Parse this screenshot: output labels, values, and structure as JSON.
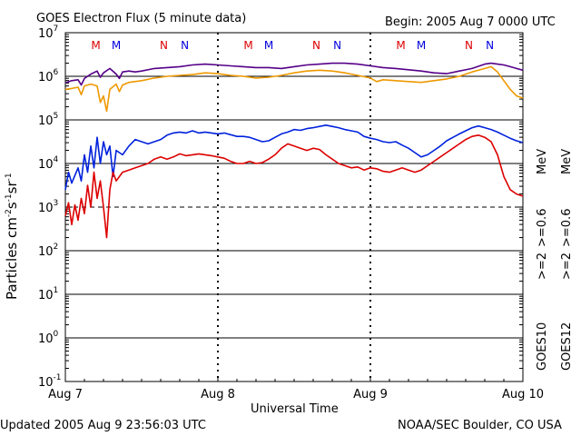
{
  "chart_data": {
    "type": "line",
    "title": "GOES Electron Flux (5 minute data)",
    "begin_label": "Begin: 2005 Aug 7 0000 UTC",
    "xlabel": "Universal Time",
    "ylabel": "Particles cm⁻²s⁻¹sr⁻¹",
    "ylabel_parts": {
      "base": "Particles cm",
      "e1": "-2",
      "s": "s",
      "e2": "-1",
      "sr": "sr",
      "e3": "-1"
    },
    "footer_left": "Updated 2005 Aug  9 23:56:03 UTC",
    "footer_right": "NOAA/SEC Boulder, CO USA",
    "y_scale": "log",
    "ylim": [
      -1,
      7
    ],
    "y_ticks": [
      {
        "base": "10",
        "exp": "7"
      },
      {
        "base": "10",
        "exp": "6"
      },
      {
        "base": "10",
        "exp": "5"
      },
      {
        "base": "10",
        "exp": "4"
      },
      {
        "base": "10",
        "exp": "3"
      },
      {
        "base": "10",
        "exp": "2"
      },
      {
        "base": "10",
        "exp": "1"
      },
      {
        "base": "10",
        "exp": "0"
      },
      {
        "base": "10",
        "exp": "-1"
      }
    ],
    "x_range_hours": [
      0,
      72
    ],
    "x_ticks": [
      {
        "label": "Aug 7",
        "hour": 0
      },
      {
        "label": "Aug 8",
        "hour": 24
      },
      {
        "label": "Aug 9",
        "hour": 48
      },
      {
        "label": "Aug 10",
        "hour": 72
      }
    ],
    "threshold_lines_log": [
      6,
      5,
      4,
      2,
      1,
      0
    ],
    "dashed_threshold_log": 3,
    "markers": [
      {
        "text": "M",
        "hour": 4.8,
        "color": "#dd0000"
      },
      {
        "text": "M",
        "hour": 8.0,
        "color": "#0000dd"
      },
      {
        "text": "N",
        "hour": 15.5,
        "color": "#dd0000"
      },
      {
        "text": "N",
        "hour": 18.8,
        "color": "#0000dd"
      },
      {
        "text": "M",
        "hour": 28.8,
        "color": "#dd0000"
      },
      {
        "text": "M",
        "hour": 32.0,
        "color": "#0000dd"
      },
      {
        "text": "N",
        "hour": 39.5,
        "color": "#dd0000"
      },
      {
        "text": "N",
        "hour": 42.8,
        "color": "#0000dd"
      },
      {
        "text": "M",
        "hour": 52.8,
        "color": "#dd0000"
      },
      {
        "text": "M",
        "hour": 56.0,
        "color": "#0000dd"
      },
      {
        "text": "N",
        "hour": 63.5,
        "color": "#dd0000"
      },
      {
        "text": "N",
        "hour": 66.8,
        "color": "#0000dd"
      }
    ],
    "legend": {
      "goes10_label": "GOES10",
      "goes12_label": "GOES12",
      "goes10_e2": ">=2",
      "goes10_e06": ">=0.6",
      "goes12_e2": ">=2",
      "goes12_e06": ">=0.6",
      "unit": "MeV"
    },
    "series": [
      {
        "name": ">=0.6 MeV GOES10",
        "color": "#550088",
        "points": [
          [
            0,
            5.85
          ],
          [
            1,
            5.9
          ],
          [
            2,
            5.92
          ],
          [
            2.5,
            5.8
          ],
          [
            3,
            5.95
          ],
          [
            4,
            6.05
          ],
          [
            5,
            6.12
          ],
          [
            5.5,
            5.98
          ],
          [
            6,
            6.08
          ],
          [
            7,
            6.18
          ],
          [
            8,
            6.05
          ],
          [
            8.5,
            5.95
          ],
          [
            9,
            6.1
          ],
          [
            10,
            6.12
          ],
          [
            11,
            6.1
          ],
          [
            12,
            6.12
          ],
          [
            14,
            6.18
          ],
          [
            16,
            6.2
          ],
          [
            18,
            6.22
          ],
          [
            20,
            6.26
          ],
          [
            22,
            6.28
          ],
          [
            24,
            6.26
          ],
          [
            26,
            6.24
          ],
          [
            28,
            6.22
          ],
          [
            30,
            6.2
          ],
          [
            32,
            6.2
          ],
          [
            34,
            6.18
          ],
          [
            36,
            6.22
          ],
          [
            38,
            6.26
          ],
          [
            40,
            6.28
          ],
          [
            42,
            6.3
          ],
          [
            44,
            6.3
          ],
          [
            46,
            6.28
          ],
          [
            48,
            6.24
          ],
          [
            50,
            6.2
          ],
          [
            52,
            6.18
          ],
          [
            54,
            6.15
          ],
          [
            56,
            6.12
          ],
          [
            58,
            6.08
          ],
          [
            60,
            6.06
          ],
          [
            62,
            6.12
          ],
          [
            64,
            6.18
          ],
          [
            66,
            6.28
          ],
          [
            67,
            6.3
          ],
          [
            68,
            6.28
          ],
          [
            69,
            6.26
          ],
          [
            70,
            6.22
          ],
          [
            71,
            6.18
          ],
          [
            72,
            6.14
          ]
        ]
      },
      {
        "name": ">=0.6 MeV GOES12",
        "color": "#ee9900",
        "points": [
          [
            0,
            5.7
          ],
          [
            1,
            5.72
          ],
          [
            2,
            5.75
          ],
          [
            2.5,
            5.58
          ],
          [
            3,
            5.78
          ],
          [
            4,
            5.82
          ],
          [
            5,
            5.78
          ],
          [
            5.5,
            5.4
          ],
          [
            6,
            5.55
          ],
          [
            6.5,
            5.2
          ],
          [
            7,
            5.7
          ],
          [
            8,
            5.82
          ],
          [
            8.5,
            5.65
          ],
          [
            9,
            5.8
          ],
          [
            10,
            5.86
          ],
          [
            12,
            5.9
          ],
          [
            14,
            5.96
          ],
          [
            16,
            6.0
          ],
          [
            18,
            6.02
          ],
          [
            20,
            6.04
          ],
          [
            22,
            6.08
          ],
          [
            24,
            6.06
          ],
          [
            26,
            6.02
          ],
          [
            28,
            6.0
          ],
          [
            30,
            5.96
          ],
          [
            32,
            5.98
          ],
          [
            34,
            6.02
          ],
          [
            36,
            6.08
          ],
          [
            38,
            6.12
          ],
          [
            40,
            6.14
          ],
          [
            42,
            6.12
          ],
          [
            44,
            6.08
          ],
          [
            46,
            6.02
          ],
          [
            48,
            5.96
          ],
          [
            49,
            5.88
          ],
          [
            50,
            5.92
          ],
          [
            52,
            5.9
          ],
          [
            54,
            5.88
          ],
          [
            56,
            5.86
          ],
          [
            58,
            5.9
          ],
          [
            60,
            5.94
          ],
          [
            62,
            6.0
          ],
          [
            64,
            6.1
          ],
          [
            66,
            6.18
          ],
          [
            67,
            6.22
          ],
          [
            68,
            6.1
          ],
          [
            69,
            5.9
          ],
          [
            70,
            5.7
          ],
          [
            71,
            5.55
          ],
          [
            72,
            5.5
          ]
        ]
      },
      {
        "name": ">=2 MeV GOES10",
        "color": "#0022dd",
        "points": [
          [
            0,
            3.4
          ],
          [
            0.5,
            3.8
          ],
          [
            1,
            3.55
          ],
          [
            2,
            3.9
          ],
          [
            2.5,
            3.6
          ],
          [
            3,
            4.2
          ],
          [
            3.5,
            3.8
          ],
          [
            4,
            4.4
          ],
          [
            4.5,
            3.9
          ],
          [
            5,
            4.6
          ],
          [
            5.5,
            4.0
          ],
          [
            6,
            4.5
          ],
          [
            6.5,
            4.2
          ],
          [
            7,
            4.4
          ],
          [
            7.5,
            3.7
          ],
          [
            8,
            4.3
          ],
          [
            9,
            4.2
          ],
          [
            10,
            4.4
          ],
          [
            11,
            4.55
          ],
          [
            12,
            4.5
          ],
          [
            13,
            4.45
          ],
          [
            14,
            4.5
          ],
          [
            15,
            4.55
          ],
          [
            16,
            4.65
          ],
          [
            17,
            4.7
          ],
          [
            18,
            4.72
          ],
          [
            19,
            4.7
          ],
          [
            20,
            4.75
          ],
          [
            21,
            4.7
          ],
          [
            22,
            4.72
          ],
          [
            23,
            4.7
          ],
          [
            24,
            4.68
          ],
          [
            25,
            4.7
          ],
          [
            26,
            4.66
          ],
          [
            27,
            4.62
          ],
          [
            28,
            4.62
          ],
          [
            29,
            4.6
          ],
          [
            30,
            4.55
          ],
          [
            31,
            4.5
          ],
          [
            32,
            4.52
          ],
          [
            33,
            4.6
          ],
          [
            34,
            4.68
          ],
          [
            35,
            4.72
          ],
          [
            36,
            4.78
          ],
          [
            37,
            4.76
          ],
          [
            38,
            4.8
          ],
          [
            39,
            4.82
          ],
          [
            40,
            4.85
          ],
          [
            41,
            4.88
          ],
          [
            42,
            4.85
          ],
          [
            43,
            4.82
          ],
          [
            44,
            4.78
          ],
          [
            45,
            4.75
          ],
          [
            46,
            4.72
          ],
          [
            47,
            4.62
          ],
          [
            48,
            4.58
          ],
          [
            49,
            4.55
          ],
          [
            50,
            4.5
          ],
          [
            51,
            4.48
          ],
          [
            52,
            4.5
          ],
          [
            53,
            4.42
          ],
          [
            54,
            4.35
          ],
          [
            55,
            4.25
          ],
          [
            56,
            4.15
          ],
          [
            57,
            4.2
          ],
          [
            58,
            4.3
          ],
          [
            59,
            4.4
          ],
          [
            60,
            4.52
          ],
          [
            61,
            4.6
          ],
          [
            62,
            4.68
          ],
          [
            63,
            4.75
          ],
          [
            64,
            4.82
          ],
          [
            65,
            4.86
          ],
          [
            66,
            4.82
          ],
          [
            67,
            4.78
          ],
          [
            68,
            4.72
          ],
          [
            69,
            4.65
          ],
          [
            70,
            4.58
          ],
          [
            71,
            4.52
          ],
          [
            72,
            4.48
          ]
        ]
      },
      {
        "name": ">=2 MeV GOES12",
        "color": "#dd0000",
        "points": [
          [
            0,
            2.8
          ],
          [
            0.5,
            3.1
          ],
          [
            1,
            2.6
          ],
          [
            1.5,
            3.05
          ],
          [
            2,
            2.7
          ],
          [
            2.5,
            3.2
          ],
          [
            3,
            2.85
          ],
          [
            3.5,
            3.5
          ],
          [
            4,
            3.0
          ],
          [
            4.5,
            3.8
          ],
          [
            5,
            3.2
          ],
          [
            5.5,
            3.6
          ],
          [
            6,
            3.0
          ],
          [
            6.5,
            2.3
          ],
          [
            7,
            3.4
          ],
          [
            7.5,
            3.8
          ],
          [
            8,
            3.6
          ],
          [
            9,
            3.8
          ],
          [
            10,
            3.85
          ],
          [
            11,
            3.9
          ],
          [
            12,
            3.95
          ],
          [
            13,
            4.0
          ],
          [
            14,
            4.1
          ],
          [
            15,
            4.15
          ],
          [
            16,
            4.1
          ],
          [
            17,
            4.15
          ],
          [
            18,
            4.22
          ],
          [
            19,
            4.18
          ],
          [
            20,
            4.2
          ],
          [
            21,
            4.22
          ],
          [
            22,
            4.2
          ],
          [
            23,
            4.18
          ],
          [
            24,
            4.15
          ],
          [
            25,
            4.12
          ],
          [
            26,
            4.05
          ],
          [
            27,
            4.0
          ],
          [
            28,
            4.0
          ],
          [
            29,
            4.05
          ],
          [
            30,
            4.0
          ],
          [
            31,
            4.02
          ],
          [
            32,
            4.1
          ],
          [
            33,
            4.2
          ],
          [
            34,
            4.35
          ],
          [
            35,
            4.45
          ],
          [
            36,
            4.4
          ],
          [
            37,
            4.35
          ],
          [
            38,
            4.3
          ],
          [
            39,
            4.35
          ],
          [
            40,
            4.32
          ],
          [
            41,
            4.2
          ],
          [
            42,
            4.1
          ],
          [
            43,
            4.0
          ],
          [
            44,
            3.95
          ],
          [
            45,
            3.9
          ],
          [
            46,
            3.92
          ],
          [
            47,
            3.85
          ],
          [
            48,
            3.9
          ],
          [
            49,
            3.88
          ],
          [
            50,
            3.82
          ],
          [
            51,
            3.8
          ],
          [
            52,
            3.85
          ],
          [
            53,
            3.9
          ],
          [
            54,
            3.85
          ],
          [
            55,
            3.8
          ],
          [
            56,
            3.85
          ],
          [
            57,
            3.95
          ],
          [
            58,
            4.05
          ],
          [
            59,
            4.15
          ],
          [
            60,
            4.25
          ],
          [
            61,
            4.35
          ],
          [
            62,
            4.45
          ],
          [
            63,
            4.55
          ],
          [
            64,
            4.62
          ],
          [
            65,
            4.65
          ],
          [
            66,
            4.6
          ],
          [
            67,
            4.5
          ],
          [
            68,
            4.2
          ],
          [
            69,
            3.7
          ],
          [
            70,
            3.4
          ],
          [
            71,
            3.3
          ],
          [
            72,
            3.25
          ]
        ]
      }
    ]
  }
}
